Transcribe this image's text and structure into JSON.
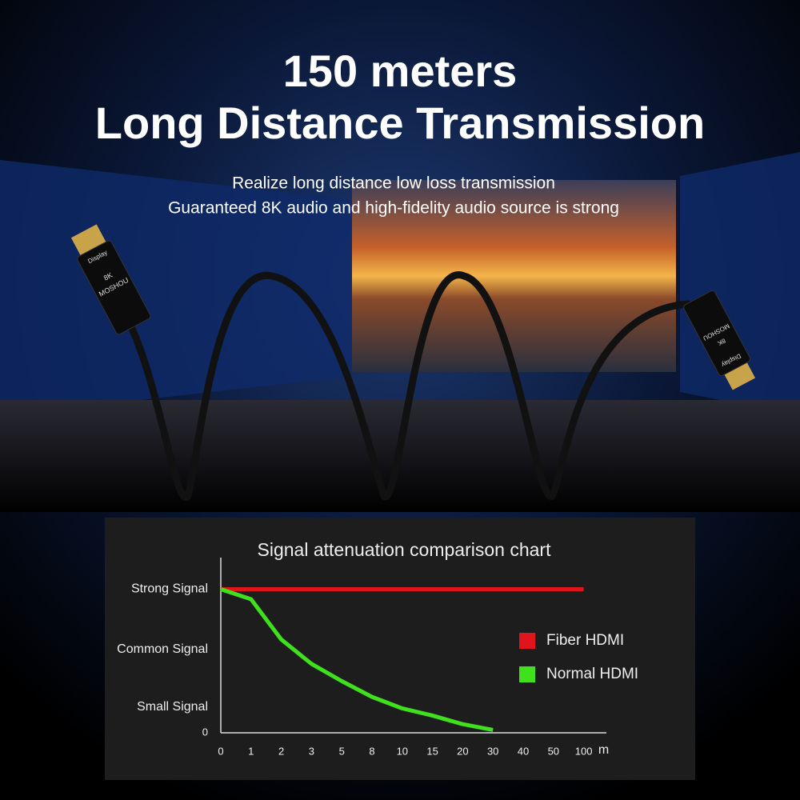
{
  "header": {
    "title_lines": [
      "150 meters",
      "Long Distance Transmission"
    ],
    "subtitle_lines": [
      "Realize long distance low loss transmission",
      "Guaranteed 8K audio and high-fidelity audio source is strong"
    ]
  },
  "product": {
    "connector_labels": [
      "Display",
      "8K",
      "MOSHOU"
    ]
  },
  "chart_data": {
    "type": "line",
    "title": "Signal attenuation comparison chart",
    "categories": [
      "0",
      "1",
      "2",
      "3",
      "5",
      "8",
      "10",
      "15",
      "20",
      "30",
      "40",
      "50",
      "100"
    ],
    "x_unit": "m",
    "series": [
      {
        "name": "Fiber HDMI",
        "color": "#e0151b",
        "values": [
          100,
          100,
          100,
          100,
          100,
          100,
          100,
          100,
          100,
          100,
          100,
          100,
          100
        ]
      },
      {
        "name": "Normal HDMI",
        "color": "#3fe01c",
        "values": [
          100,
          93,
          65,
          48,
          36,
          25,
          17,
          12,
          6,
          2,
          null,
          null,
          null
        ]
      }
    ],
    "ylim": [
      0,
      122
    ],
    "yticks": [
      0,
      {
        "value": 18,
        "label": "Small Signal"
      },
      {
        "value": 58,
        "label": "Common Signal"
      },
      {
        "value": 100,
        "label": "Strong Signal"
      }
    ],
    "legend": "right"
  }
}
